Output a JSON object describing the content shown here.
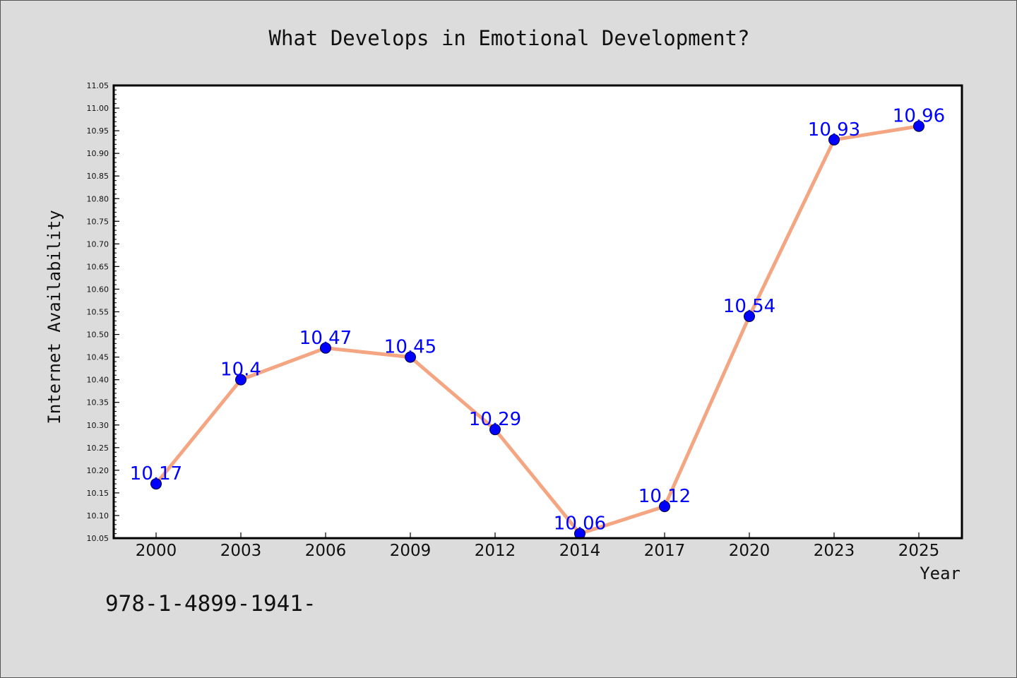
{
  "footnote": "978-1-4899-1941-",
  "colors": {
    "background": "#dcdcdc",
    "plot_area": "#ffffff",
    "line": "#f4a582",
    "marker": "#0000ff",
    "label": "#0000ff"
  },
  "chart_data": {
    "type": "line",
    "title": "What Develops in Emotional Development?",
    "xlabel": "Year",
    "ylabel": "Internet Availability",
    "categories": [
      "2000",
      "2003",
      "2006",
      "2009",
      "2012",
      "2014",
      "2017",
      "2020",
      "2023",
      "2025"
    ],
    "series": [
      {
        "values": [
          10.17,
          10.4,
          10.47,
          10.45,
          10.29,
          10.06,
          10.12,
          10.54,
          10.93,
          10.96
        ],
        "labels": [
          "10.17",
          "10.4",
          "10.47",
          "10.45",
          "10.29",
          "10.06",
          "10.12",
          "10.54",
          "10.93",
          "10.96"
        ]
      }
    ],
    "ylim": [
      10.05,
      11.05
    ],
    "yticks": [
      "10.05",
      "10.10",
      "10.15",
      "10.20",
      "10.25",
      "10.30",
      "10.35",
      "10.40",
      "10.45",
      "10.50",
      "10.55",
      "10.60",
      "10.65",
      "10.70",
      "10.75",
      "10.80",
      "10.85",
      "10.90",
      "10.95",
      "11.00",
      "11.05"
    ],
    "ytick_minor_step": 0.01,
    "grid": false,
    "legend": false,
    "marker": "circle"
  }
}
